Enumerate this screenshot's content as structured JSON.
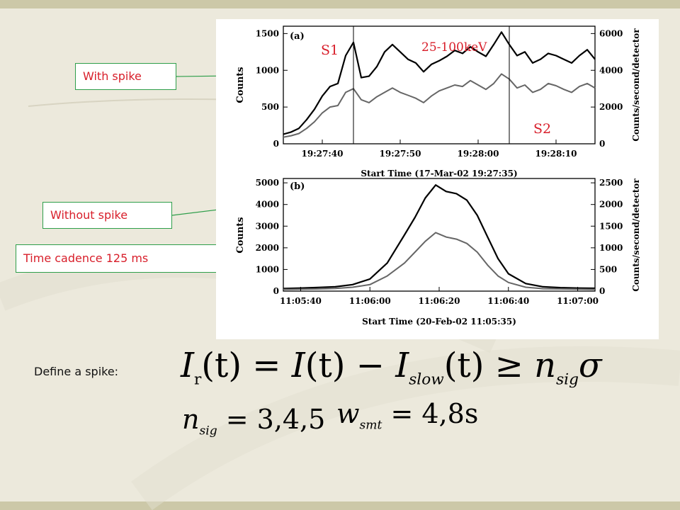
{
  "slide": {
    "callouts": {
      "with_spike": "With spike",
      "without_spike": "Without spike",
      "time_cadence": "Time cadence 125 ms"
    },
    "define_label": "Define a spike:",
    "formula_spike": {
      "I": "I",
      "r": "r",
      "t": "(t)",
      "eq": " = ",
      "slow": "slow",
      "geq": " ≥ ",
      "n": "n",
      "sig": "sig",
      "sigma": "σ",
      "minus": " − "
    },
    "formula_nsig": {
      "n": "n",
      "sig": "sig",
      "rhs": " = 3,4,5"
    },
    "formula_wsmt": {
      "w": "w",
      "smt": "smt",
      "rhs": " = 4,8s"
    },
    "colors": {
      "callout_border": "#2e9e4a",
      "callout_text": "#d81e2a",
      "burst_label": "#d81e2a"
    }
  },
  "chart_data": [
    {
      "type": "line",
      "panel_label": "(a)",
      "xlabel": "Start Time (17-Mar-02 19:27:35)",
      "ylabel": "Counts",
      "ylabel_right": "Counts/second/detector",
      "x_ticks": [
        "19:27:40",
        "19:27:50",
        "19:28:00",
        "19:28:10"
      ],
      "x_tick_seconds": [
        5,
        15,
        25,
        35
      ],
      "xlim_seconds": [
        0,
        40
      ],
      "y_ticks": [
        0,
        500,
        1000,
        1500
      ],
      "y_ticks_right": [
        0,
        2000,
        4000,
        6000
      ],
      "ylim": [
        0,
        1600
      ],
      "annotations": {
        "band": "25-100keV",
        "s1": "S1",
        "s2": "S2"
      },
      "markers_seconds": {
        "s1": 9,
        "s2": 29
      },
      "series": [
        {
          "color": "#000000",
          "x_seconds": [
            0,
            1,
            2,
            3,
            4,
            5,
            6,
            7,
            8,
            9,
            10,
            11,
            12,
            13,
            14,
            15,
            16,
            17,
            18,
            19,
            20,
            21,
            22,
            23,
            24,
            25,
            26,
            27,
            28,
            29,
            30,
            31,
            32,
            33,
            34,
            35,
            36,
            37,
            38,
            39,
            40
          ],
          "values": [
            130,
            160,
            210,
            330,
            470,
            650,
            780,
            820,
            1200,
            1380,
            900,
            920,
            1050,
            1250,
            1350,
            1250,
            1150,
            1100,
            980,
            1080,
            1130,
            1190,
            1270,
            1230,
            1320,
            1250,
            1190,
            1350,
            1520,
            1350,
            1200,
            1250,
            1100,
            1150,
            1230,
            1200,
            1150,
            1100,
            1200,
            1280,
            1150
          ]
        },
        {
          "color": "#666666",
          "x_seconds": [
            0,
            1,
            2,
            3,
            4,
            5,
            6,
            7,
            8,
            9,
            10,
            11,
            12,
            13,
            14,
            15,
            16,
            17,
            18,
            19,
            20,
            21,
            22,
            23,
            24,
            25,
            26,
            27,
            28,
            29,
            30,
            31,
            32,
            33,
            34,
            35,
            36,
            37,
            38,
            39,
            40
          ],
          "values": [
            90,
            110,
            140,
            210,
            300,
            420,
            500,
            520,
            700,
            750,
            600,
            560,
            640,
            700,
            760,
            700,
            660,
            620,
            560,
            650,
            720,
            760,
            800,
            780,
            860,
            800,
            740,
            820,
            950,
            880,
            760,
            800,
            700,
            740,
            820,
            790,
            740,
            700,
            780,
            820,
            760
          ]
        }
      ]
    },
    {
      "type": "line",
      "panel_label": "(b)",
      "xlabel": "Start Time (20-Feb-02 11:05:35)",
      "ylabel": "Counts",
      "ylabel_right": "Counts/second/detector",
      "x_ticks": [
        "11:05:40",
        "11:06:00",
        "11:06:20",
        "11:06:40",
        "11:07:00"
      ],
      "x_tick_seconds": [
        5,
        25,
        45,
        65,
        85
      ],
      "xlim_seconds": [
        0,
        90
      ],
      "y_ticks": [
        0,
        1000,
        2000,
        3000,
        4000,
        5000
      ],
      "y_ticks_right": [
        0,
        500,
        1000,
        1500,
        2000,
        2500
      ],
      "ylim": [
        0,
        5200
      ],
      "series": [
        {
          "color": "#000000",
          "x_seconds": [
            0,
            5,
            10,
            15,
            20,
            25,
            30,
            35,
            38,
            41,
            44,
            47,
            50,
            53,
            56,
            59,
            62,
            65,
            70,
            75,
            80,
            85,
            90
          ],
          "values": [
            120,
            140,
            170,
            200,
            300,
            560,
            1300,
            2600,
            3400,
            4300,
            4900,
            4600,
            4500,
            4200,
            3500,
            2500,
            1500,
            800,
            350,
            200,
            160,
            140,
            130
          ]
        },
        {
          "color": "#666666",
          "x_seconds": [
            0,
            5,
            10,
            15,
            20,
            25,
            30,
            35,
            38,
            41,
            44,
            47,
            50,
            53,
            56,
            59,
            62,
            65,
            70,
            75,
            80,
            85,
            90
          ],
          "values": [
            80,
            90,
            100,
            120,
            180,
            300,
            700,
            1300,
            1800,
            2300,
            2700,
            2500,
            2400,
            2200,
            1800,
            1200,
            700,
            400,
            180,
            110,
            100,
            90,
            80
          ]
        }
      ]
    }
  ]
}
